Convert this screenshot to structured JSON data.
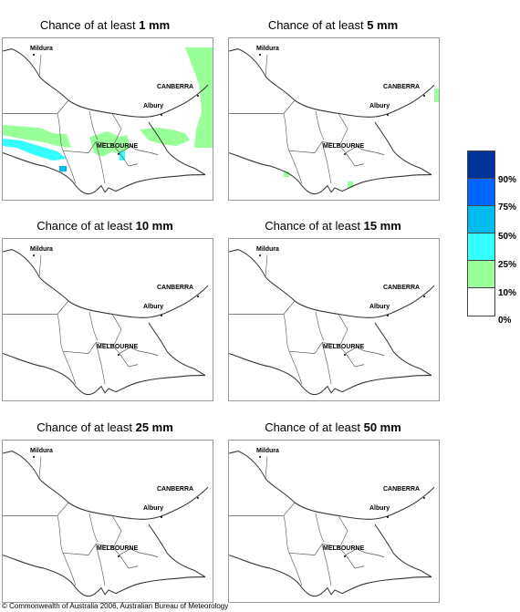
{
  "panels": [
    {
      "prefix": "Chance of at least ",
      "amount": "1 mm"
    },
    {
      "prefix": "Chance of at least ",
      "amount": "5 mm"
    },
    {
      "prefix": "Chance of at least ",
      "amount": "10 mm"
    },
    {
      "prefix": "Chance of at least ",
      "amount": "15 mm"
    },
    {
      "prefix": "Chance of at least ",
      "amount": "25 mm"
    },
    {
      "prefix": "Chance of at least ",
      "amount": "50 mm"
    }
  ],
  "places": {
    "mildura": "Mildura",
    "canberra": "CANBERRA",
    "albury": "Albury",
    "melbourne": "MELBOURNE"
  },
  "legend": {
    "labels": [
      "90%",
      "75%",
      "50%",
      "25%",
      "10%",
      "0%"
    ],
    "colors": [
      "#003399",
      "#0066ff",
      "#00bbee",
      "#33ffff",
      "#99ff99",
      "#ffffff"
    ]
  },
  "footer": "© Commonwealth of Australia 2006, Australian Bureau of Meteorology"
}
